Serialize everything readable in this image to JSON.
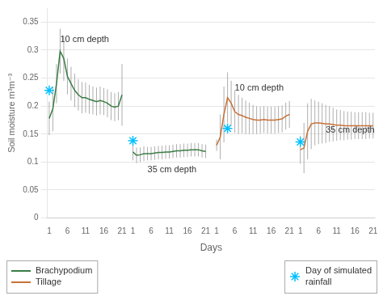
{
  "chart_data": {
    "type": "line",
    "ylabel": "Soil moisture m³m⁻³",
    "xlabel": "Days",
    "categories": [
      "1",
      null,
      null,
      null,
      null,
      "6",
      null,
      null,
      null,
      null,
      "11",
      null,
      null,
      null,
      null,
      "16",
      null,
      null,
      null,
      null,
      "21",
      null,
      null,
      "1",
      null,
      null,
      null,
      null,
      "6",
      null,
      null,
      null,
      null,
      "11",
      null,
      null,
      null,
      null,
      "16",
      null,
      null,
      null,
      null,
      "21",
      null,
      null,
      "1",
      null,
      null,
      null,
      null,
      "6",
      null,
      null,
      null,
      null,
      "11",
      null,
      null,
      null,
      null,
      "16",
      null,
      null,
      null,
      null,
      "21",
      null,
      null,
      "1",
      null,
      null,
      null,
      null,
      "6",
      null,
      null,
      null,
      null,
      "11",
      null,
      null,
      null,
      null,
      "16",
      null,
      null,
      null,
      null,
      "21"
    ],
    "series": [
      {
        "name": "Brachypodium",
        "type": "line",
        "color": "#3a7d44",
        "values": [
          0.178,
          0.195,
          0.24,
          0.298,
          0.285,
          0.253,
          0.24,
          0.228,
          0.22,
          0.215,
          0.215,
          0.212,
          0.21,
          0.208,
          0.21,
          0.208,
          0.205,
          0.2,
          0.198,
          0.2,
          0.22,
          null,
          null,
          0.118,
          0.112,
          0.113,
          0.115,
          0.115,
          0.115,
          0.116,
          0.117,
          0.117,
          0.118,
          0.118,
          0.119,
          0.12,
          0.12,
          0.121,
          0.121,
          0.122,
          0.122,
          0.122,
          0.12,
          0.119,
          null,
          null,
          null,
          null,
          null,
          null,
          null,
          null,
          null,
          null,
          null,
          null,
          null,
          null,
          null,
          null,
          null,
          null,
          null,
          null,
          null,
          null,
          null,
          null,
          null,
          null,
          null,
          null,
          null,
          null,
          null,
          null,
          null,
          null,
          null,
          null,
          null,
          null,
          null,
          null,
          null,
          null,
          null,
          null,
          null,
          null
        ],
        "errors": [
          0.03,
          0.04,
          0.035,
          0.04,
          0.04,
          0.032,
          0.03,
          0.03,
          0.028,
          0.028,
          0.027,
          0.026,
          0.025,
          0.025,
          0.025,
          0.024,
          0.025,
          0.025,
          0.025,
          0.025,
          0.055,
          null,
          null,
          0.015,
          0.014,
          0.013,
          0.013,
          0.012,
          0.012,
          0.012,
          0.012,
          0.012,
          0.012,
          0.012,
          0.012,
          0.012,
          0.012,
          0.012,
          0.012,
          0.012,
          0.012,
          0.012,
          0.012,
          0.012,
          null,
          null,
          null,
          null,
          null,
          null,
          null,
          null,
          null,
          null,
          null,
          null,
          null,
          null,
          null,
          null,
          null,
          null,
          null,
          null,
          null,
          null,
          null,
          null,
          null,
          null,
          null,
          null,
          null,
          null,
          null,
          null,
          null,
          null,
          null,
          null,
          null,
          null,
          null,
          null,
          null,
          null,
          null,
          null,
          null,
          null
        ]
      },
      {
        "name": "Tillage",
        "type": "line",
        "color": "#c87137",
        "values": [
          null,
          null,
          null,
          null,
          null,
          null,
          null,
          null,
          null,
          null,
          null,
          null,
          null,
          null,
          null,
          null,
          null,
          null,
          null,
          null,
          null,
          null,
          null,
          null,
          null,
          null,
          null,
          null,
          null,
          null,
          null,
          null,
          null,
          null,
          null,
          null,
          null,
          null,
          null,
          null,
          null,
          null,
          null,
          null,
          null,
          null,
          0.13,
          0.145,
          0.185,
          0.215,
          0.205,
          0.19,
          0.185,
          0.183,
          0.18,
          0.178,
          0.176,
          0.175,
          0.175,
          0.176,
          0.175,
          0.175,
          0.175,
          0.176,
          0.177,
          0.182,
          0.185,
          null,
          null,
          0.122,
          0.125,
          0.155,
          0.168,
          0.17,
          0.17,
          0.169,
          0.168,
          0.168,
          0.167,
          0.166,
          0.166,
          0.165,
          0.165,
          0.165,
          0.165,
          0.165,
          0.165,
          0.165,
          0.165,
          0.165
        ],
        "errors": [
          null,
          null,
          null,
          null,
          null,
          null,
          null,
          null,
          null,
          null,
          null,
          null,
          null,
          null,
          null,
          null,
          null,
          null,
          null,
          null,
          null,
          null,
          null,
          null,
          null,
          null,
          null,
          null,
          null,
          null,
          null,
          null,
          null,
          null,
          null,
          null,
          null,
          null,
          null,
          null,
          null,
          null,
          null,
          null,
          null,
          null,
          0.01,
          0.04,
          0.05,
          0.045,
          0.04,
          0.038,
          0.035,
          0.032,
          0.03,
          0.028,
          0.026,
          0.025,
          0.024,
          0.024,
          0.024,
          0.024,
          0.024,
          0.024,
          0.024,
          0.024,
          0.024,
          null,
          null,
          0.025,
          0.045,
          0.05,
          0.045,
          0.04,
          0.038,
          0.036,
          0.034,
          0.032,
          0.03,
          0.028,
          0.027,
          0.026,
          0.025,
          0.025,
          0.024,
          0.024,
          0.024,
          0.024,
          0.023,
          0.023
        ]
      },
      {
        "name": "Day of simulated\nrainfall",
        "type": "scatter",
        "marker": "star",
        "color": "#00bfff",
        "values": [
          0.228,
          null,
          null,
          null,
          null,
          null,
          null,
          null,
          null,
          null,
          null,
          null,
          null,
          null,
          null,
          null,
          null,
          null,
          null,
          null,
          null,
          null,
          null,
          0.138,
          null,
          null,
          null,
          null,
          null,
          null,
          null,
          null,
          null,
          null,
          null,
          null,
          null,
          null,
          null,
          null,
          null,
          null,
          null,
          null,
          null,
          null,
          null,
          null,
          null,
          0.16,
          null,
          null,
          null,
          null,
          null,
          null,
          null,
          null,
          null,
          null,
          null,
          null,
          null,
          null,
          null,
          null,
          null,
          null,
          null,
          0.136,
          null,
          null,
          null,
          null,
          null,
          null,
          null,
          null,
          null,
          null,
          null,
          null,
          null,
          null,
          null,
          null,
          null,
          null,
          null,
          null
        ]
      }
    ],
    "annotations": [
      {
        "text": "10 cm depth",
        "x": 3,
        "y": 0.315
      },
      {
        "text": "35 cm depth",
        "x": 27,
        "y": 0.082
      },
      {
        "text": "10 cm depth",
        "x": 51,
        "y": 0.228
      },
      {
        "text": "35 cm depth",
        "x": 76,
        "y": 0.152
      }
    ],
    "ylim": [
      0,
      0.375
    ],
    "yticks": [
      0,
      0.05,
      0.1,
      0.15,
      0.2,
      0.25,
      0.3,
      0.35
    ],
    "grid": "y",
    "legend": "bottom"
  }
}
